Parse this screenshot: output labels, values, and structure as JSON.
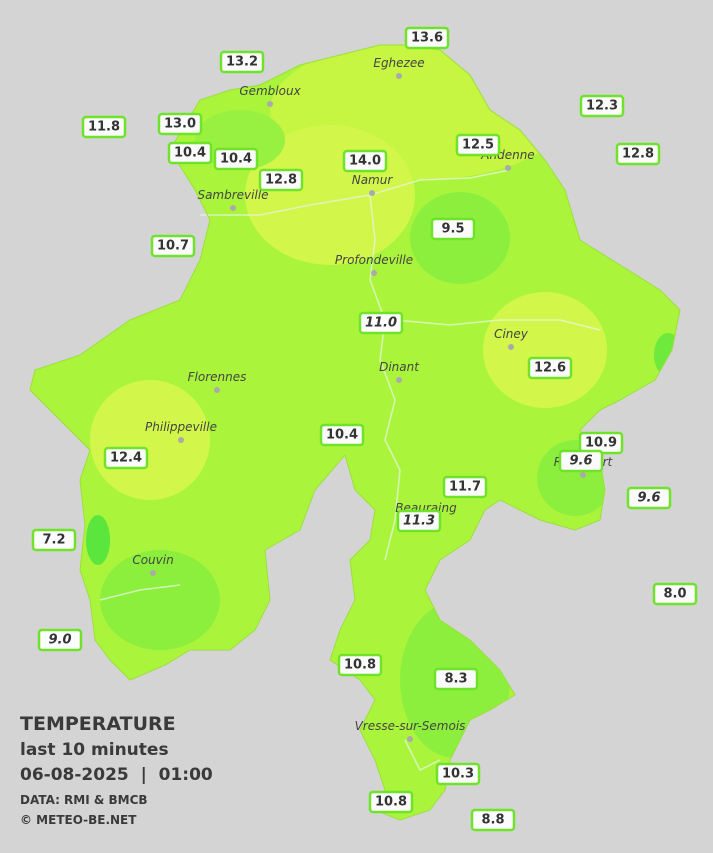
{
  "stations": [
    "13.6",
    "13.2",
    "12.3",
    "11.8",
    "13.0",
    "10.4",
    "10.4",
    "12.5",
    "12.8",
    "14.0",
    "12.8",
    "9.5",
    "10.7",
    "11.0",
    "12.6",
    "10.4",
    "10.9",
    "12.4",
    "9.6",
    "11.7",
    "9.6",
    "11.3",
    "7.2",
    "8.0",
    "9.0",
    "10.8",
    "8.3",
    "10.3",
    "10.8",
    "8.8"
  ],
  "cities": [
    "Eghezee",
    "Gembloux",
    "Andenne",
    "Namur",
    "Sambreville",
    "Profondeville",
    "Ciney",
    "Dinant",
    "Florennes",
    "Philippeville",
    "Rochefort",
    "Beauraing",
    "Couvin",
    "Vresse-sur-Semois"
  ],
  "legend": {
    "title": "TEMPERATURE",
    "period": "last 10 minutes",
    "datetime": "06-08-2025  |  01:00",
    "source": "DATA: RMI & BMCB",
    "copyright": "© METEO-BE.NET"
  }
}
